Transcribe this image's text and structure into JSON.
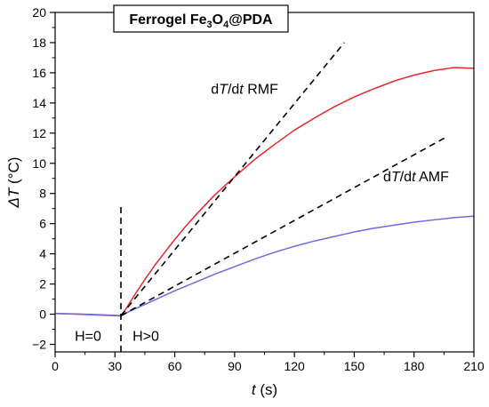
{
  "chart_data": {
    "type": "line",
    "title": "Ferrogel Fe3O4@PDA",
    "title_parts": {
      "a": "Ferrogel Fe",
      "s1": "3",
      "b": "O",
      "s2": "4",
      "c": "@PDA"
    },
    "xlabel": {
      "var": "t",
      "unit": " (s)"
    },
    "ylabel": {
      "var": "ΔT",
      "unit": " (°C)"
    },
    "xlim": [
      0,
      210
    ],
    "ylim": [
      -2.5,
      20
    ],
    "x_ticks": [
      0,
      30,
      60,
      90,
      120,
      150,
      180,
      210
    ],
    "y_ticks": [
      -2,
      0,
      2,
      4,
      6,
      8,
      10,
      12,
      14,
      16,
      18,
      20
    ],
    "grid": false,
    "series": [
      {
        "color": "#e8262a",
        "x": [
          0,
          10,
          20,
          30,
          33,
          36,
          40,
          45,
          50,
          55,
          60,
          65,
          70,
          75,
          80,
          90,
          100,
          110,
          120,
          130,
          140,
          150,
          160,
          170,
          180,
          190,
          200,
          210
        ],
        "y": [
          0.05,
          0.02,
          -0.03,
          -0.08,
          -0.1,
          0.45,
          1.3,
          2.3,
          3.25,
          4.1,
          4.95,
          5.75,
          6.5,
          7.2,
          7.9,
          9.1,
          10.25,
          11.25,
          12.2,
          13.0,
          13.75,
          14.4,
          14.95,
          15.45,
          15.85,
          16.15,
          16.35,
          16.3
        ]
      },
      {
        "color": "#6b6be0",
        "x": [
          0,
          10,
          20,
          30,
          33,
          36,
          40,
          45,
          50,
          55,
          60,
          70,
          80,
          90,
          100,
          110,
          120,
          130,
          140,
          150,
          160,
          170,
          180,
          190,
          200,
          210
        ],
        "y": [
          0.05,
          0.0,
          -0.05,
          -0.1,
          -0.12,
          0.1,
          0.35,
          0.65,
          0.95,
          1.25,
          1.55,
          2.1,
          2.65,
          3.15,
          3.65,
          4.1,
          4.5,
          4.85,
          5.15,
          5.45,
          5.7,
          5.9,
          6.1,
          6.25,
          6.4,
          6.5
        ]
      },
      {
        "color": "#000000",
        "dashed": true,
        "x": [
          33,
          145
        ],
        "y": [
          -0.1,
          18.0
        ]
      },
      {
        "color": "#000000",
        "dashed": true,
        "x": [
          33,
          197
        ],
        "y": [
          -0.1,
          11.8
        ]
      },
      {
        "color": "#000000",
        "dashed": true,
        "x": [
          33,
          33
        ],
        "y": [
          -2.5,
          7.2
        ]
      }
    ],
    "annotations": [
      {
        "pre": "d",
        "v1": "T",
        "mid": "/d",
        "v2": "t",
        "post": " RMF",
        "x": 95,
        "y": 14.6
      },
      {
        "pre": "d",
        "v1": "T",
        "mid": "/d",
        "v2": "t",
        "post": " AMF",
        "x": 181,
        "y": 8.8
      },
      {
        "text": "H=0",
        "x": 16.5,
        "y": -1.75
      },
      {
        "text": "H>0",
        "x": 45.5,
        "y": -1.75
      }
    ]
  }
}
